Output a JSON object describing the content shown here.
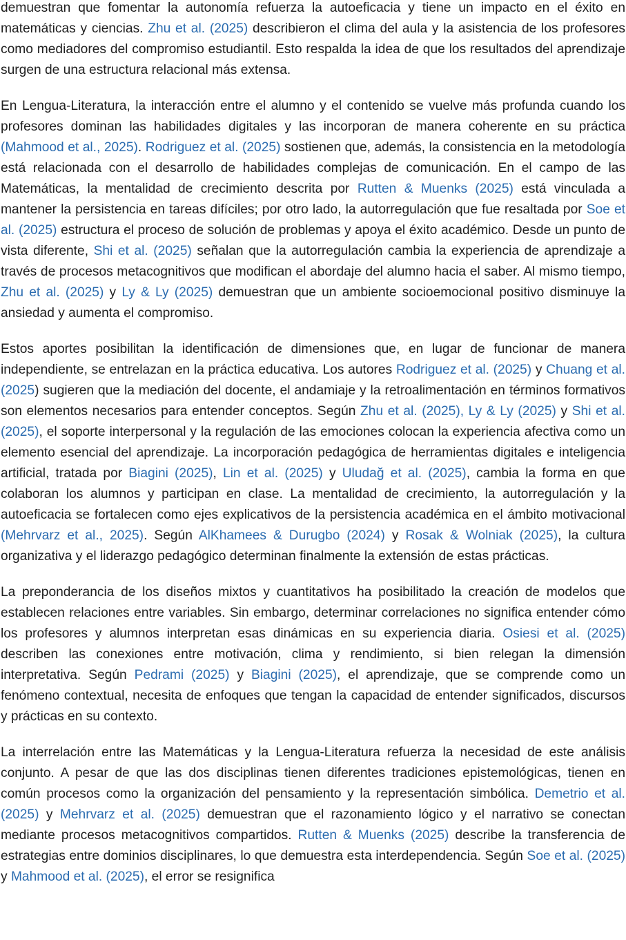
{
  "paragraphs": [
    [
      {
        "text": "demuestran que fomentar la autonomía refuerza la autoeficacia y tiene un impacto en el éxito en matemáticas y ciencias. "
      },
      {
        "link": "Zhu et al. (2025)"
      },
      {
        "text": " describieron el clima del aula y la asistencia de los profesores como mediadores del compromiso estudiantil. Esto respalda la idea de que los resultados del aprendizaje surgen de una estructura relacional más extensa."
      }
    ],
    [
      {
        "text": "En Lengua-Literatura, la interacción entre el alumno y el contenido se vuelve más profunda cuando los profesores dominan las habilidades digitales y las incorporan de manera coherente en su práctica "
      },
      {
        "link": "(Mahmood et al., 2025)"
      },
      {
        "text": ". "
      },
      {
        "link": "Rodriguez et al. (2025)"
      },
      {
        "text": " sostienen que, además, la consistencia en la metodología está relacionada con el desarrollo de habilidades complejas de comunicación. En el campo de las Matemáticas, la mentalidad de crecimiento descrita por "
      },
      {
        "link": "Rutten & Muenks (2025)"
      },
      {
        "text": " está vinculada a mantener la persistencia en tareas difíciles; por otro lado, la autorregulación que fue resaltada por "
      },
      {
        "link": "Soe et al. (2025)"
      },
      {
        "text": " estructura el proceso de solución de problemas y apoya el éxito académico. Desde un punto de vista diferente, "
      },
      {
        "link": "Shi et al. (2025)"
      },
      {
        "text": " señalan que la autorregulación cambia la experiencia de aprendizaje a través de procesos metacognitivos que modifican el abordaje del alumno hacia el saber. Al mismo tiempo, "
      },
      {
        "link": "Zhu et al. (2025)"
      },
      {
        "text": " y "
      },
      {
        "link": "Ly & Ly (2025)"
      },
      {
        "text": " demuestran que un ambiente socioemocional positivo disminuye la ansiedad y aumenta el compromiso."
      }
    ],
    [
      {
        "text": "Estos aportes posibilitan la identificación de dimensiones que, en lugar de funcionar de manera independiente, se entrelazan en la práctica educativa. Los autores "
      },
      {
        "link": "Rodriguez et al. (2025)"
      },
      {
        "text": " y "
      },
      {
        "link": "Chuang et al. (2025"
      },
      {
        "text": ") sugieren que la mediación del docente, el andamiaje y la retroalimentación en términos formativos son elementos necesarios para entender conceptos. Según "
      },
      {
        "link": "Zhu et al. (2025), Ly & Ly (2025)"
      },
      {
        "text": " y "
      },
      {
        "link": "Shi et al. (2025)"
      },
      {
        "text": ", el soporte interpersonal y la regulación de las emociones colocan la experiencia afectiva como un elemento esencial del aprendizaje. La incorporación pedagógica de herramientas digitales e inteligencia artificial, tratada por "
      },
      {
        "link": "Biagini (2025)"
      },
      {
        "text": ", "
      },
      {
        "link": "Lin et al. (2025)"
      },
      {
        "text": " y "
      },
      {
        "link": "Uludağ et al. (2025)"
      },
      {
        "text": ", cambia la forma en que colaboran los alumnos y participan en clase. La mentalidad de crecimiento, la autorregulación y la autoeficacia se fortalecen como ejes explicativos de la persistencia académica en el ámbito motivacional "
      },
      {
        "link": "(Mehrvarz et al., 2025)"
      },
      {
        "text": ". Según "
      },
      {
        "link": "AlKhamees & Durugbo (2024)"
      },
      {
        "text": " y "
      },
      {
        "link": "Rosak & Wolniak (2025)"
      },
      {
        "text": ", la cultura organizativa y el liderazgo pedagógico determinan finalmente la extensión de estas prácticas."
      }
    ],
    [
      {
        "text": "La preponderancia de los diseños mixtos y cuantitativos ha posibilitado la creación de modelos que establecen relaciones entre variables. Sin embargo, determinar correlaciones no significa entender cómo los profesores y alumnos interpretan esas dinámicas en su experiencia diaria. "
      },
      {
        "link": "Osiesi et al. (2025)"
      },
      {
        "text": " describen las conexiones entre motivación, clima y rendimiento, si bien relegan la dimensión interpretativa. Según "
      },
      {
        "link": "Pedrami (2025)"
      },
      {
        "text": " y "
      },
      {
        "link": "Biagini (2025)"
      },
      {
        "text": ", el aprendizaje, que se comprende como un fenómeno contextual, necesita de enfoques que tengan la capacidad de entender significados, discursos y prácticas en su contexto."
      }
    ],
    [
      {
        "text": "La interrelación entre las Matemáticas y la Lengua-Literatura refuerza la necesidad de este análisis conjunto. A pesar de que las dos disciplinas tienen diferentes tradiciones epistemológicas, tienen en común procesos como la organización del pensamiento y la representación simbólica. "
      },
      {
        "link": "Demetrio et al. (2025)"
      },
      {
        "text": " y "
      },
      {
        "link": "Mehrvarz et al. (2025)"
      },
      {
        "text": " demuestran que el razonamiento lógico y el narrativo se conectan mediante procesos metacognitivos compartidos. "
      },
      {
        "link": "Rutten & Muenks (2025)"
      },
      {
        "text": " describe la transferencia de estrategias entre dominios disciplinares, lo que demuestra esta interdependencia. Según "
      },
      {
        "link": "Soe et al. (2025)"
      },
      {
        "text": " y "
      },
      {
        "link": "Mahmood et al. (2025)"
      },
      {
        "text": ", el error se resignifica"
      }
    ]
  ]
}
